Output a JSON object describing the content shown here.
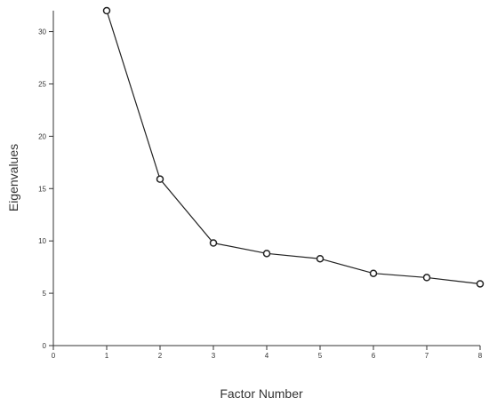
{
  "chart_data": {
    "type": "line",
    "x_label": "Factor Number",
    "y_label": "Eigenvalues",
    "x": [
      1,
      2,
      3,
      4,
      5,
      6,
      7,
      8
    ],
    "series": [
      {
        "color": "#222222",
        "values": [
          32,
          15.9,
          9.8,
          8.8,
          8.3,
          6.9,
          6.5,
          5.9
        ]
      }
    ],
    "xlim": [
      0,
      8
    ],
    "xticks": [
      0,
      1,
      2,
      3,
      4,
      5,
      6,
      7,
      8
    ],
    "ylim": [
      0,
      32
    ],
    "yticks": [
      0,
      5,
      10,
      15,
      20,
      25,
      30
    ],
    "markers": true
  }
}
